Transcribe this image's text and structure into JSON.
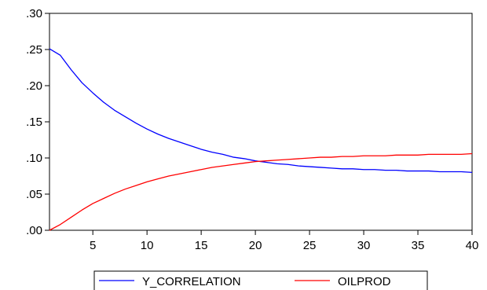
{
  "chart_data": {
    "type": "line",
    "title": "",
    "xlabel": "",
    "ylabel": "",
    "xlim": [
      1,
      40
    ],
    "ylim": [
      0,
      0.3
    ],
    "x_ticks": [
      5,
      10,
      15,
      20,
      25,
      30,
      35,
      40
    ],
    "x_tick_labels": [
      "5",
      "10",
      "15",
      "20",
      "25",
      "30",
      "35",
      "40"
    ],
    "y_ticks": [
      0,
      0.05,
      0.1,
      0.15,
      0.2,
      0.25,
      0.3
    ],
    "y_tick_labels": [
      ".00",
      ".05",
      ".10",
      ".15",
      ".20",
      ".25",
      ".30"
    ],
    "grid": false,
    "legend_position": "bottom-center",
    "x": [
      1,
      2,
      3,
      4,
      5,
      6,
      7,
      8,
      9,
      10,
      11,
      12,
      13,
      14,
      15,
      16,
      17,
      18,
      19,
      20,
      21,
      22,
      23,
      24,
      25,
      26,
      27,
      28,
      29,
      30,
      31,
      32,
      33,
      34,
      35,
      36,
      37,
      38,
      39,
      40
    ],
    "series": [
      {
        "name": "Y_CORRELATION",
        "color": "#0000ff",
        "values": [
          0.251,
          0.242,
          0.222,
          0.204,
          0.19,
          0.177,
          0.166,
          0.157,
          0.148,
          0.14,
          0.133,
          0.127,
          0.122,
          0.117,
          0.112,
          0.108,
          0.105,
          0.101,
          0.099,
          0.096,
          0.094,
          0.092,
          0.091,
          0.089,
          0.088,
          0.087,
          0.086,
          0.085,
          0.085,
          0.084,
          0.084,
          0.083,
          0.083,
          0.082,
          0.082,
          0.082,
          0.081,
          0.081,
          0.081,
          0.08
        ]
      },
      {
        "name": "OILPROD",
        "color": "#ff0000",
        "values": [
          0.0,
          0.008,
          0.018,
          0.028,
          0.037,
          0.044,
          0.051,
          0.057,
          0.062,
          0.067,
          0.071,
          0.075,
          0.078,
          0.081,
          0.084,
          0.087,
          0.089,
          0.091,
          0.093,
          0.095,
          0.096,
          0.097,
          0.098,
          0.099,
          0.1,
          0.101,
          0.101,
          0.102,
          0.102,
          0.103,
          0.103,
          0.103,
          0.104,
          0.104,
          0.104,
          0.105,
          0.105,
          0.105,
          0.105,
          0.106
        ]
      }
    ]
  }
}
